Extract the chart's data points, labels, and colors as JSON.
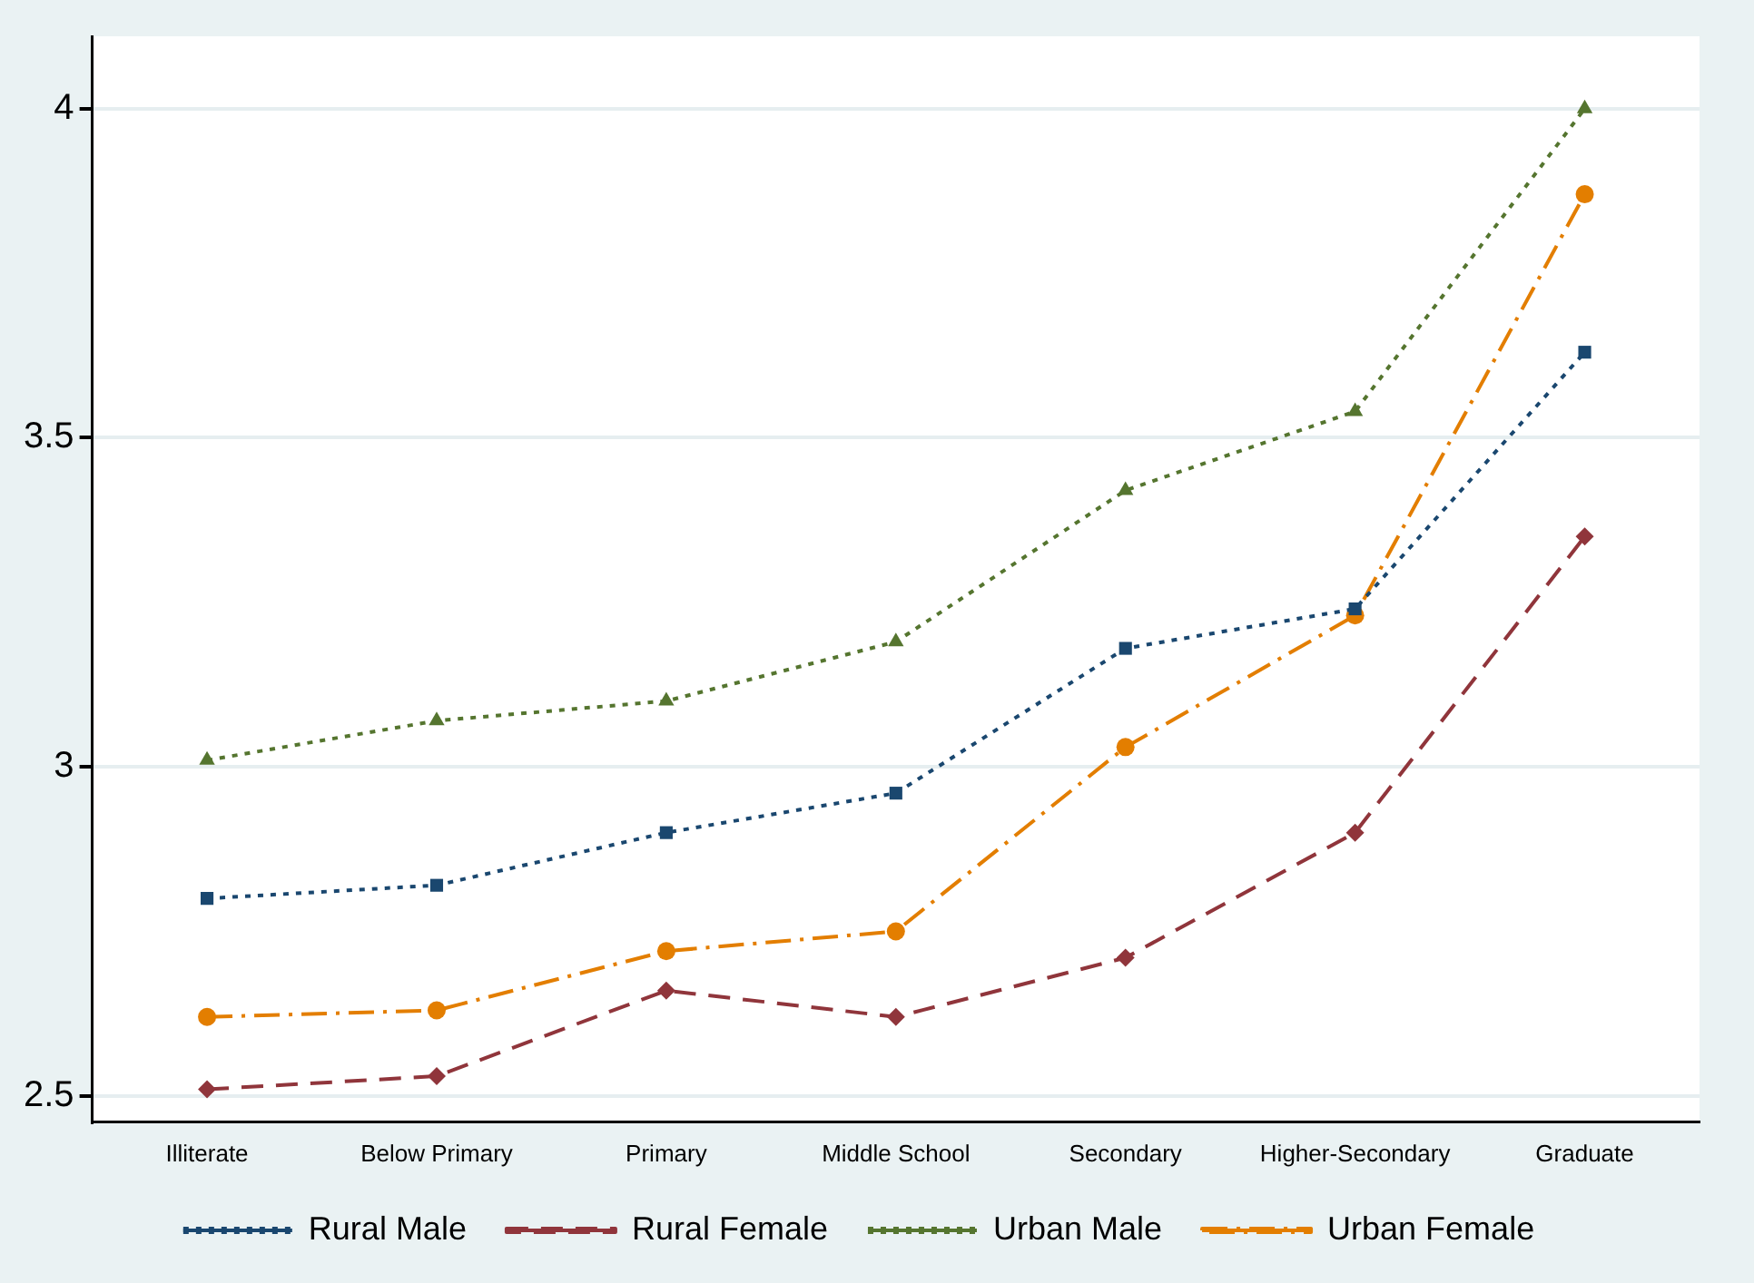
{
  "chart_data": {
    "type": "line",
    "categories": [
      "Illiterate",
      "Below Primary",
      "Primary",
      "Middle School",
      "Secondary",
      "Higher-Secondary",
      "Graduate"
    ],
    "ylim": [
      2.46,
      4.11
    ],
    "yticks": [
      2.5,
      3,
      3.5,
      4
    ],
    "grid": "y",
    "legend": "bottom",
    "series": [
      {
        "name": "Rural Male",
        "color": "#1a476f",
        "marker": "square",
        "line_style": "dotted",
        "values": [
          2.8,
          2.82,
          2.9,
          2.96,
          3.18,
          3.24,
          3.63
        ]
      },
      {
        "name": "Rural Female",
        "color": "#90353b",
        "marker": "diamond",
        "line_style": "dashed",
        "values": [
          2.51,
          2.53,
          2.66,
          2.62,
          2.71,
          2.9,
          3.35
        ]
      },
      {
        "name": "Urban Male",
        "color": "#55752f",
        "marker": "triangle",
        "line_style": "dotted",
        "values": [
          3.01,
          3.07,
          3.1,
          3.19,
          3.42,
          3.54,
          4.0
        ]
      },
      {
        "name": "Urban Female",
        "color": "#e37e00",
        "marker": "circle",
        "line_style": "dashdot",
        "values": [
          2.62,
          2.63,
          2.72,
          2.75,
          3.03,
          3.23,
          3.87
        ]
      }
    ]
  }
}
